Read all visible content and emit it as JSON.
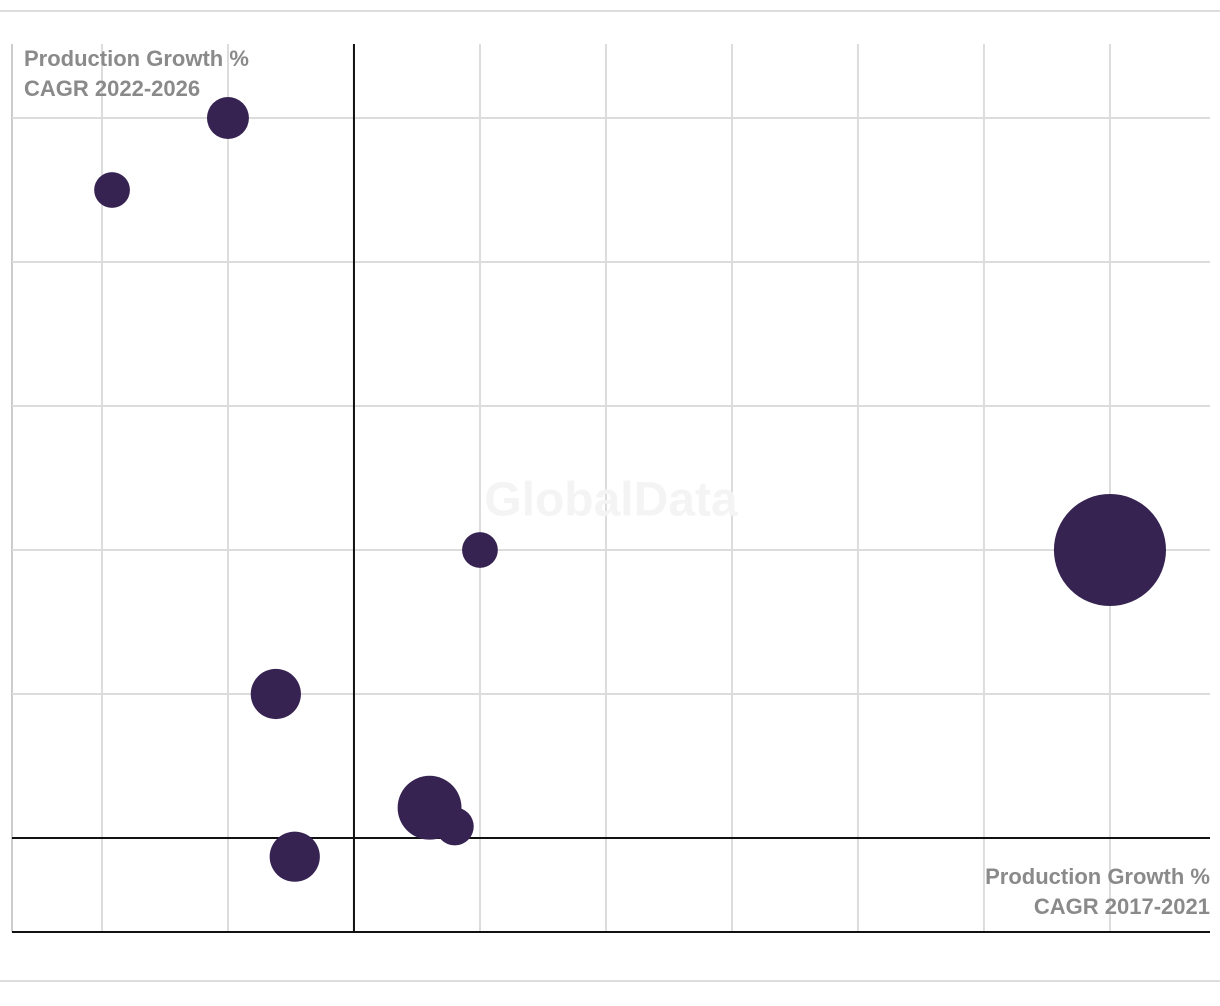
{
  "chart_data": {
    "type": "bubble",
    "x_label": "Production Growth % CAGR 2017-2021",
    "y_label": "Production Growth % CAGR 2022-2026",
    "watermark": "GlobalData",
    "x": [
      -1.92,
      -1,
      1,
      6,
      -0.62,
      0.6,
      0.8,
      -0.47
    ],
    "series": [
      {
        "color": "#372352",
        "values": [
          4.5,
          5,
          2,
          2,
          1,
          0.21,
          0.08,
          -0.13
        ],
        "sizes": [
          3.2,
          4.4,
          3.2,
          31.4,
          6.3,
          10.2,
          3.6,
          6.3
        ]
      }
    ],
    "xlim": [
      -2.714,
      6.794
    ],
    "ylim": [
      -0.653,
      5.514
    ],
    "xticks": [
      -2,
      -1,
      0,
      1,
      2,
      3,
      4,
      5,
      6
    ],
    "yticks": [
      0,
      1,
      2,
      3,
      4,
      5
    ],
    "grid": true
  }
}
